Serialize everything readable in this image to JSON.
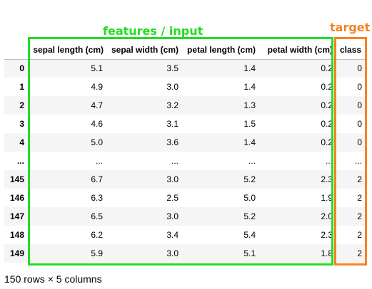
{
  "annotations": {
    "features_label": "features / input",
    "features_color": "#22dd22",
    "target_label": "target",
    "target_color": "#f58220"
  },
  "table": {
    "index_header": "",
    "columns": [
      "sepal length (cm)",
      "sepal width (cm)",
      "petal length (cm)",
      "petal width (cm)",
      "class"
    ],
    "rows": [
      {
        "index": "0",
        "cells": [
          "5.1",
          "3.5",
          "1.4",
          "0.2",
          "0"
        ]
      },
      {
        "index": "1",
        "cells": [
          "4.9",
          "3.0",
          "1.4",
          "0.2",
          "0"
        ]
      },
      {
        "index": "2",
        "cells": [
          "4.7",
          "3.2",
          "1.3",
          "0.2",
          "0"
        ]
      },
      {
        "index": "3",
        "cells": [
          "4.6",
          "3.1",
          "1.5",
          "0.2",
          "0"
        ]
      },
      {
        "index": "4",
        "cells": [
          "5.0",
          "3.6",
          "1.4",
          "0.2",
          "0"
        ]
      },
      {
        "index": "...",
        "cells": [
          "...",
          "...",
          "...",
          "...",
          "..."
        ]
      },
      {
        "index": "145",
        "cells": [
          "6.7",
          "3.0",
          "5.2",
          "2.3",
          "2"
        ]
      },
      {
        "index": "146",
        "cells": [
          "6.3",
          "2.5",
          "5.0",
          "1.9",
          "2"
        ]
      },
      {
        "index": "147",
        "cells": [
          "6.5",
          "3.0",
          "5.2",
          "2.0",
          "2"
        ]
      },
      {
        "index": "148",
        "cells": [
          "6.2",
          "3.4",
          "5.4",
          "2.3",
          "2"
        ]
      },
      {
        "index": "149",
        "cells": [
          "5.9",
          "3.0",
          "5.1",
          "1.8",
          "2"
        ]
      }
    ]
  },
  "footer": {
    "shape_text": "150 rows × 5 columns"
  }
}
